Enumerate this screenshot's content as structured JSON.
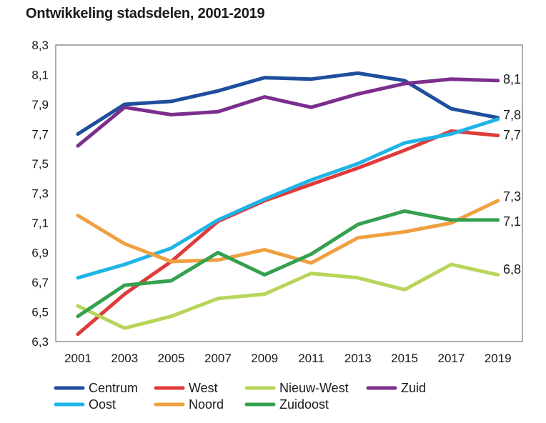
{
  "chart_data": {
    "type": "line",
    "title": "Ontwikkeling stadsdelen, 2001-2019",
    "xlabel": "",
    "ylabel": "",
    "x": [
      "2001",
      "2003",
      "2005",
      "2007",
      "2009",
      "2011",
      "2013",
      "2015",
      "2017",
      "2019"
    ],
    "ylim": [
      6.3,
      8.3
    ],
    "yticks": [
      "6,3",
      "6,5",
      "6,7",
      "6,9",
      "7,1",
      "7,3",
      "7,5",
      "7,7",
      "7,9",
      "8,1",
      "8,3"
    ],
    "grid": false,
    "legend_position": "bottom",
    "series": [
      {
        "name": "Centrum",
        "color": "#1f4e9c",
        "values": [
          7.7,
          7.9,
          7.92,
          7.99,
          8.08,
          8.07,
          8.11,
          8.06,
          7.87,
          7.81
        ],
        "end_label": "7,8"
      },
      {
        "name": "West",
        "color": "#e03a3a",
        "values": [
          6.35,
          6.62,
          6.84,
          7.11,
          7.25,
          7.36,
          7.47,
          7.59,
          7.72,
          7.69
        ],
        "end_label": "7,7"
      },
      {
        "name": "Nieuw-West",
        "color": "#b7d55a",
        "values": [
          6.54,
          6.39,
          6.47,
          6.59,
          6.62,
          6.76,
          6.73,
          6.65,
          6.82,
          6.75
        ],
        "end_label": "6,8"
      },
      {
        "name": "Zuid",
        "color": "#7b2e8e",
        "values": [
          7.62,
          7.88,
          7.83,
          7.85,
          7.95,
          7.88,
          7.97,
          8.04,
          8.07,
          8.06
        ],
        "end_label": "8,1"
      },
      {
        "name": "Oost",
        "color": "#1eb4e6",
        "values": [
          6.73,
          6.82,
          6.93,
          7.12,
          7.26,
          7.39,
          7.5,
          7.64,
          7.7,
          7.8
        ],
        "end_label": ""
      },
      {
        "name": "Noord",
        "color": "#f0a040",
        "values": [
          7.15,
          6.96,
          6.84,
          6.85,
          6.92,
          6.83,
          7.0,
          7.04,
          7.1,
          7.25
        ],
        "end_label": "7,3"
      },
      {
        "name": "Zuidoost",
        "color": "#35a04f",
        "values": [
          6.47,
          6.68,
          6.71,
          6.9,
          6.75,
          6.89,
          7.09,
          7.18,
          7.12,
          7.12
        ],
        "end_label": "7,1"
      }
    ]
  }
}
